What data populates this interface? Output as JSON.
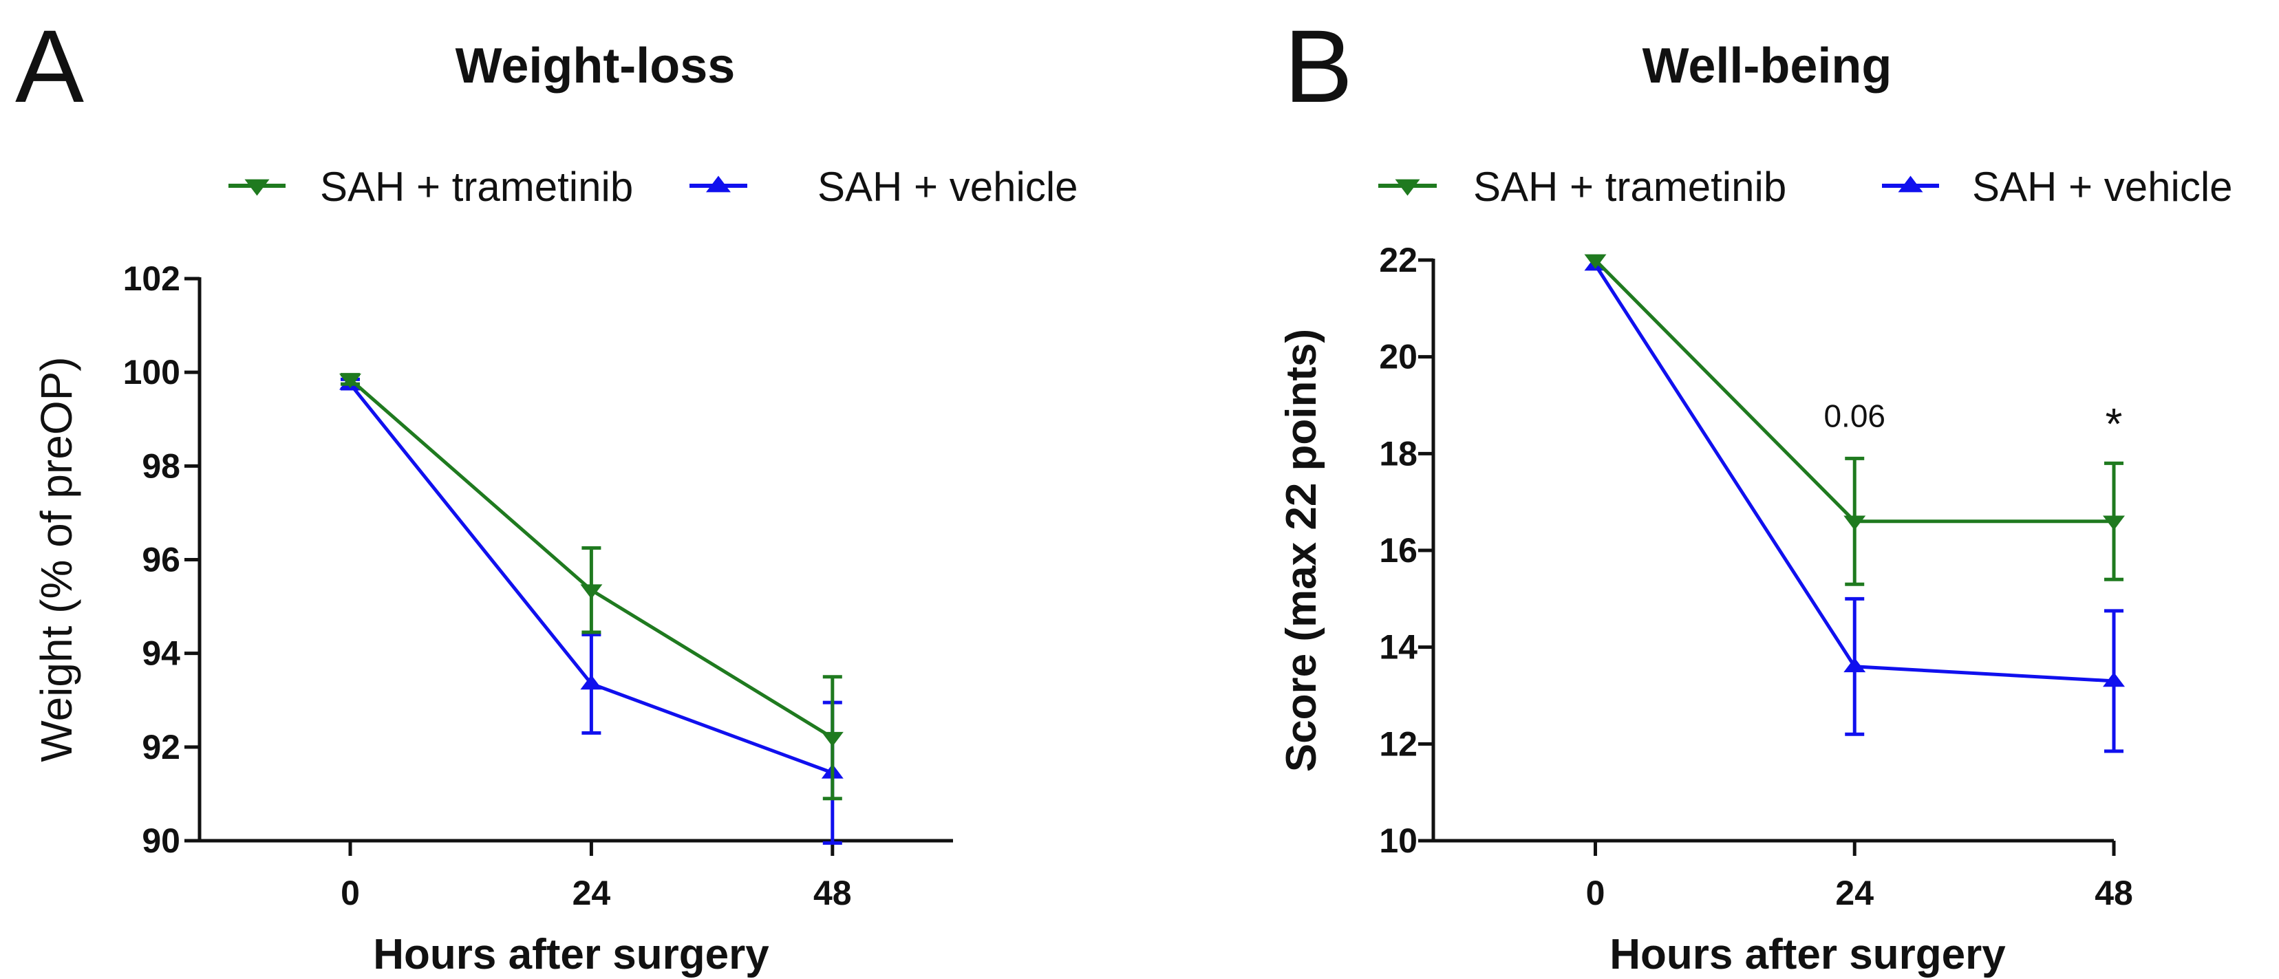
{
  "chart_data": [
    {
      "type": "line",
      "panel_label": "A",
      "title": "Weight-loss",
      "xlabel": "Hours after surgery",
      "ylabel": "Weight (% of preOP)",
      "x": [
        0,
        24,
        48
      ],
      "xlim": [
        -15,
        60
      ],
      "ylim": [
        90,
        102
      ],
      "yticks": [
        90,
        92,
        94,
        96,
        98,
        100,
        102
      ],
      "xticks": [
        0,
        24,
        48
      ],
      "grid": false,
      "legend": "top",
      "series": [
        {
          "name": "SAH + trametinib",
          "color": "#1f7a1f",
          "marker": "triangle-down",
          "values": [
            99.85,
            95.35,
            92.2
          ],
          "err": [
            0.1,
            0.9,
            1.3
          ]
        },
        {
          "name": "SAH + vehicle",
          "color": "#1010ee",
          "marker": "triangle-up",
          "values": [
            99.75,
            93.35,
            91.45
          ],
          "err": [
            0.1,
            1.05,
            1.5
          ]
        }
      ],
      "annotations": []
    },
    {
      "type": "line",
      "panel_label": "B",
      "title": "Well-being",
      "xlabel": "Hours after surgery",
      "ylabel": "Score (max 22 points)",
      "x": [
        0,
        24,
        48
      ],
      "xlim": [
        -15,
        48
      ],
      "ylim": [
        10,
        22
      ],
      "yticks": [
        10,
        12,
        14,
        16,
        18,
        20,
        22
      ],
      "xticks": [
        0,
        24,
        48
      ],
      "grid": false,
      "legend": "top",
      "series": [
        {
          "name": "SAH + trametinib",
          "color": "#1f7a1f",
          "marker": "triangle-down",
          "values": [
            22.0,
            16.6,
            16.6
          ],
          "err": [
            0.05,
            1.3,
            1.2
          ]
        },
        {
          "name": "SAH + vehicle",
          "color": "#1010ee",
          "marker": "triangle-up",
          "values": [
            21.9,
            13.6,
            13.3
          ],
          "err": [
            0.05,
            1.4,
            1.45
          ]
        }
      ],
      "annotations": [
        {
          "x": 24,
          "y": 18.55,
          "text": "0.06"
        },
        {
          "x": 48,
          "y": 18.3,
          "text": "*"
        }
      ]
    }
  ]
}
